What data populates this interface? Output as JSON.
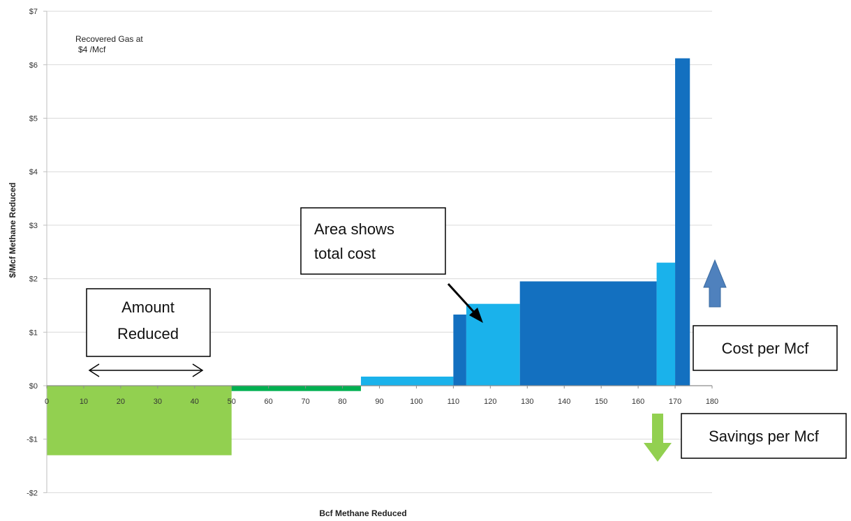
{
  "chart_data": {
    "type": "bar",
    "subtype": "marginal-abatement-cost-curve",
    "title": "",
    "xlabel": "Bcf Methane Reduced",
    "ylabel": "$/Mcf Methane Reduced",
    "xlim": [
      0,
      180
    ],
    "ylim": [
      -2,
      7
    ],
    "x_ticks": [
      0,
      10,
      20,
      30,
      40,
      50,
      60,
      70,
      80,
      90,
      100,
      110,
      120,
      130,
      140,
      150,
      160,
      170,
      180
    ],
    "y_ticks": [
      {
        "value": 7,
        "label": "$7"
      },
      {
        "value": 6,
        "label": "$6"
      },
      {
        "value": 5,
        "label": "$5"
      },
      {
        "value": 4,
        "label": "$4"
      },
      {
        "value": 3,
        "label": "$3"
      },
      {
        "value": 2,
        "label": "$2"
      },
      {
        "value": 1,
        "label": "$1"
      },
      {
        "value": 0,
        "label": "$0"
      },
      {
        "value": -1,
        "label": "-$1"
      },
      {
        "value": -2,
        "label": "-$2"
      }
    ],
    "grid": "horizontal",
    "bars": [
      {
        "x_start": 0,
        "x_end": 50,
        "value": -1.3,
        "color": "#92d050"
      },
      {
        "x_start": 50,
        "x_end": 85,
        "value": -0.1,
        "color": "#00b050"
      },
      {
        "x_start": 85,
        "x_end": 110,
        "value": 0.17,
        "color": "#1ab2eb"
      },
      {
        "x_start": 110,
        "x_end": 113.5,
        "value": 1.33,
        "color": "#1370c0"
      },
      {
        "x_start": 113.5,
        "x_end": 128,
        "value": 1.53,
        "color": "#1ab2eb"
      },
      {
        "x_start": 128,
        "x_end": 165,
        "value": 1.95,
        "color": "#1370c0"
      },
      {
        "x_start": 165,
        "x_end": 170,
        "value": 2.3,
        "color": "#1ab2eb"
      },
      {
        "x_start": 170,
        "x_end": 174,
        "value": 6.12,
        "color": "#1370c0"
      }
    ],
    "annotations": {
      "recovered_gas_line1": "Recovered Gas at",
      "recovered_gas_line2": "$4 /Mcf",
      "amount_reduced_line1": "Amount",
      "amount_reduced_line2": "Reduced",
      "area_line1": "Area shows",
      "area_line2": "total cost",
      "cost_per_mcf": "Cost per Mcf",
      "savings_per_mcf": "Savings per Mcf"
    },
    "colors": {
      "up_arrow": "#4f81bd",
      "down_arrow": "#92d050"
    }
  }
}
